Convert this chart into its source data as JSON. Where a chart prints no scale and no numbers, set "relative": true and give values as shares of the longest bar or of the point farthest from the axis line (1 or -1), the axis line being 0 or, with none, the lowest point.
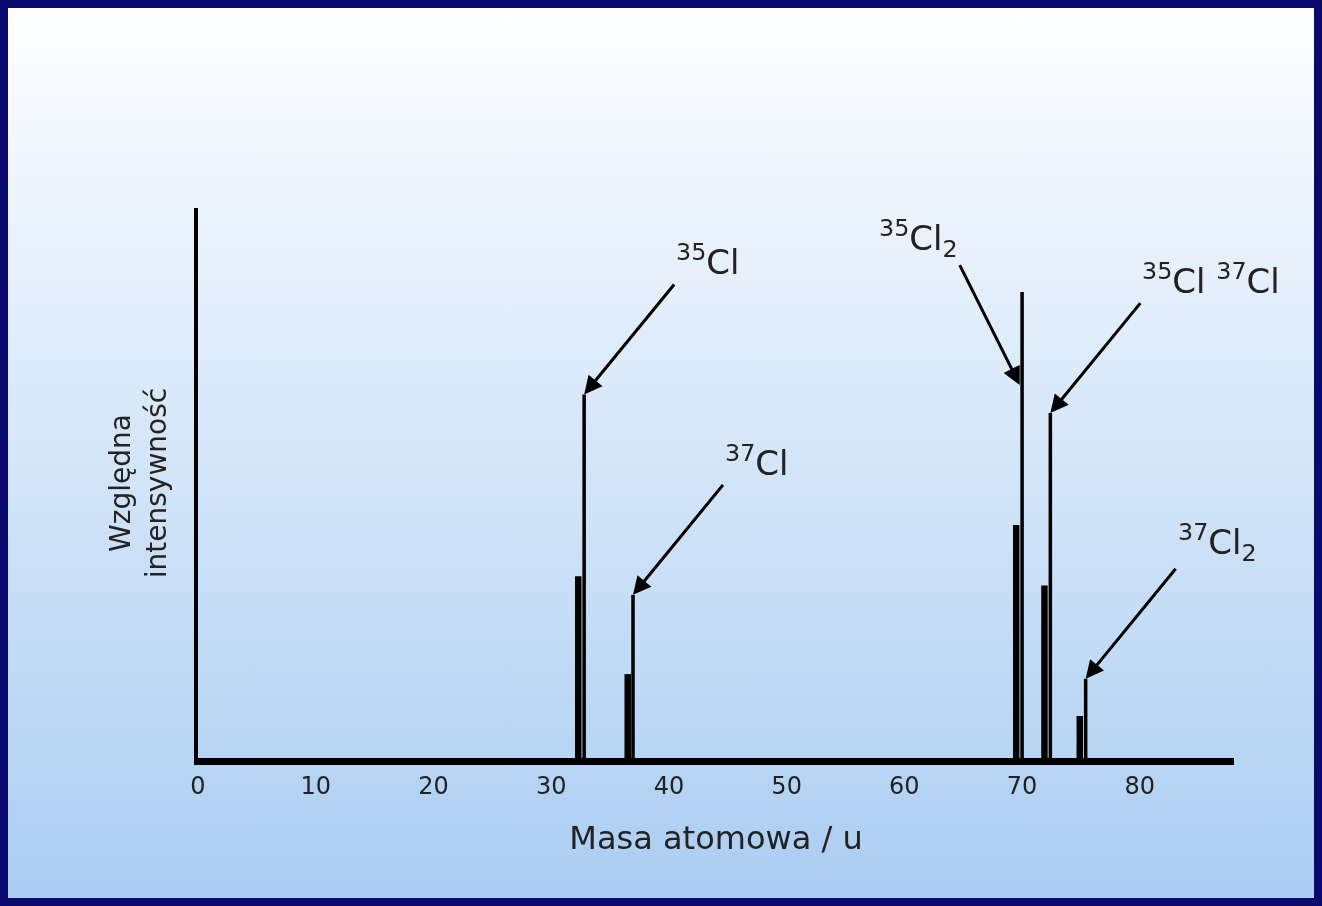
{
  "chart_data": {
    "type": "bar",
    "relative": true,
    "xlabel": "Masa atomowa / u",
    "ylabel": "Względna intensywność",
    "xlim": [
      0,
      88
    ],
    "xticks": [
      0,
      10,
      20,
      30,
      40,
      50,
      60,
      70,
      80
    ],
    "grid": false,
    "series": [
      {
        "color": "#000000",
        "x": [
          32.3,
          36.5,
          69.5,
          71.9,
          74.9
        ],
        "values": [
          0.39,
          0.18,
          0.5,
          0.37,
          0.09
        ]
      },
      {
        "color": "#000000",
        "x": [
          32.8,
          36.95,
          70.0,
          72.4,
          75.4
        ],
        "values": [
          0.78,
          0.35,
          1.0,
          0.74,
          0.17
        ]
      }
    ],
    "annotations": [
      {
        "text": "$^{35}$Cl",
        "x": 32.8,
        "y": 0.78
      },
      {
        "text": "$^{37}$Cl",
        "x": 36.95,
        "y": 0.35
      },
      {
        "text": "$^{35}$Cl$_{2}$",
        "x": 69.8,
        "y": 0.8
      },
      {
        "text": "$^{35}$Cl $^{37}$Cl",
        "x": 72.4,
        "y": 0.74
      },
      {
        "text": "$^{37}$Cl$_{2}$",
        "x": 75.4,
        "y": 0.17
      }
    ]
  }
}
